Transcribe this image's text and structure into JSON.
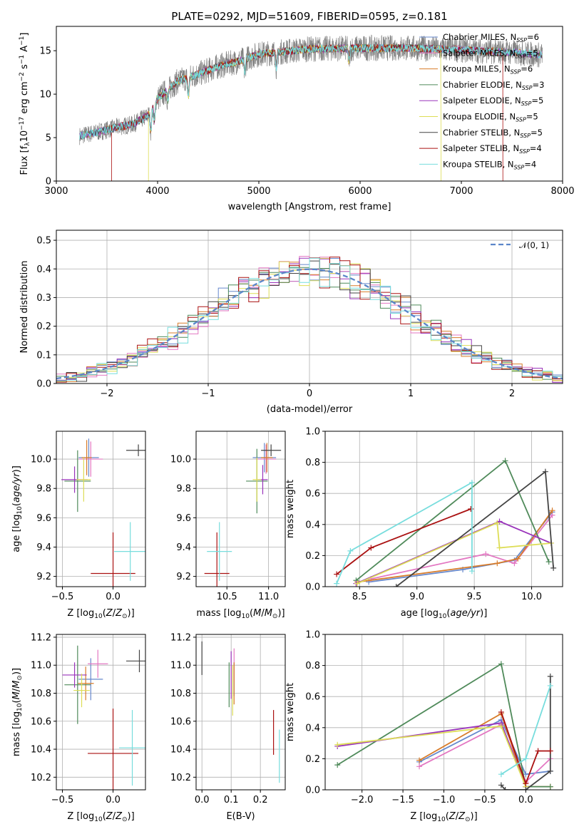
{
  "title": "PLATE=0292, MJD=51609, FIBERID=0595, z=0.181",
  "colors": [
    "#6688cc",
    "#e377c2",
    "#d87c2a",
    "#4f8a5a",
    "#9933bb",
    "#dddd55",
    "#444444",
    "#aa1111",
    "#77dddd"
  ],
  "chart_data": [
    {
      "id": "spectrum",
      "type": "line",
      "xlabel": "wavelength [Angstrom, rest frame]",
      "ylabel": "Flux [f",
      "xlim": [
        3000,
        8000
      ],
      "ylim": [
        0,
        17.8
      ],
      "xticks": [
        3000,
        4000,
        5000,
        6000,
        7000,
        8000
      ],
      "yticks": [
        0,
        5,
        10,
        15
      ],
      "grid": false,
      "legend_position": "top-right",
      "legend": [
        {
          "label": "Chabrier MILES, N",
          "n": "6"
        },
        {
          "label": "Salpeter MILES, N",
          "n": "5"
        },
        {
          "label": "Kroupa MILES, N",
          "n": "6"
        },
        {
          "label": "Chabrier ELODIE, N",
          "n": "3"
        },
        {
          "label": "Salpeter ELODIE, N",
          "n": "5"
        },
        {
          "label": "Kroupa ELODIE, N",
          "n": "5"
        },
        {
          "label": "Chabrier STELIB, N",
          "n": "5"
        },
        {
          "label": "Salpeter STELIB, N",
          "n": "4"
        },
        {
          "label": "Kroupa STELIB, N",
          "n": "4"
        }
      ],
      "continuum_x": [
        3230,
        3400,
        3600,
        3750,
        3900,
        4000,
        4200,
        4400,
        4600,
        4800,
        5000,
        5500,
        6000,
        6500,
        7000,
        7500,
        7800
      ],
      "continuum_y": [
        5.2,
        5.6,
        6.2,
        6.5,
        7.5,
        9.5,
        11.5,
        12.3,
        13.2,
        13.8,
        14.6,
        15.2,
        15.3,
        15.3,
        15.1,
        14.8,
        14.5
      ],
      "model_cutoffs": [
        {
          "series": 7,
          "x_start": 3545,
          "x_end": 7410
        },
        {
          "series": 5,
          "x_start": 3910,
          "x_end": 6800
        }
      ]
    },
    {
      "id": "residuals",
      "type": "histogram",
      "xlabel": "(data-model)/error",
      "ylabel": "Normed distribution",
      "xlim": [
        -2.5,
        2.5
      ],
      "ylim": [
        0,
        0.535
      ],
      "xticks": [
        -2,
        -1,
        0,
        1,
        2
      ],
      "yticks": [
        0,
        0.1,
        0.2,
        0.3,
        0.4,
        0.5
      ],
      "grid": true,
      "bin_width": 0.1,
      "legend": "𝒩(0, 1)",
      "legend_position": "top-right",
      "reference_curve": "normal(0,1)"
    },
    {
      "id": "age-vs-Z",
      "type": "errorbar",
      "xlabel": "Z [log",
      "ylabel": "age  [log",
      "xlim": [
        -0.56,
        0.32
      ],
      "ylim": [
        9.13,
        10.19
      ],
      "xticks": [
        -0.5,
        0.0
      ],
      "yticks": [
        9.2,
        9.4,
        9.6,
        9.8,
        10.0
      ],
      "grid": true,
      "points": [
        {
          "s": 0,
          "x": -0.24,
          "y": 10.01,
          "dx": 0.1,
          "dy": 0.13
        },
        {
          "s": 1,
          "x": -0.22,
          "y": 10.0,
          "dx": 0.12,
          "dy": 0.12
        },
        {
          "s": 2,
          "x": -0.26,
          "y": 10.01,
          "dx": 0.05,
          "dy": 0.12
        },
        {
          "s": 3,
          "x": -0.35,
          "y": 9.85,
          "dx": 0.13,
          "dy": 0.21
        },
        {
          "s": 4,
          "x": -0.38,
          "y": 9.86,
          "dx": 0.13,
          "dy": 0.09
        },
        {
          "s": 5,
          "x": -0.29,
          "y": 9.86,
          "dx": 0.07,
          "dy": 0.15
        },
        {
          "s": 6,
          "x": 0.25,
          "y": 10.06,
          "dx": 0.12,
          "dy": 0.04
        },
        {
          "s": 7,
          "x": 0.0,
          "y": 9.22,
          "dx": 0.22,
          "dy": 0.28
        },
        {
          "s": 8,
          "x": 0.17,
          "y": 9.37,
          "dx": 0.16,
          "dy": 0.2
        }
      ]
    },
    {
      "id": "age-vs-mass",
      "type": "errorbar",
      "xlabel": "mass [log",
      "xlim": [
        10.13,
        11.2
      ],
      "ylim": [
        9.13,
        10.19
      ],
      "xticks": [
        10.5,
        11.0
      ],
      "yticks": [
        9.2,
        9.4,
        9.6,
        9.8,
        10.0
      ],
      "grid": true,
      "points": [
        {
          "s": 0,
          "x": 10.95,
          "y": 10.01,
          "dx": 0.14,
          "dy": 0.1
        },
        {
          "s": 1,
          "x": 10.97,
          "y": 10.0,
          "dx": 0.12,
          "dy": 0.1
        },
        {
          "s": 2,
          "x": 10.98,
          "y": 10.01,
          "dx": 0.07,
          "dy": 0.1
        },
        {
          "s": 3,
          "x": 10.86,
          "y": 9.85,
          "dx": 0.13,
          "dy": 0.22
        },
        {
          "s": 4,
          "x": 10.93,
          "y": 9.86,
          "dx": 0.06,
          "dy": 0.1
        },
        {
          "s": 5,
          "x": 10.86,
          "y": 9.86,
          "dx": 0.05,
          "dy": 0.15
        },
        {
          "s": 6,
          "x": 11.03,
          "y": 10.06,
          "dx": 0.12,
          "dy": 0.04
        },
        {
          "s": 7,
          "x": 10.38,
          "y": 9.22,
          "dx": 0.15,
          "dy": 0.28
        },
        {
          "s": 8,
          "x": 10.41,
          "y": 9.37,
          "dx": 0.15,
          "dy": 0.2
        }
      ]
    },
    {
      "id": "weight-vs-age",
      "type": "line",
      "xlabel": "age  [log",
      "ylabel": "mass weight",
      "xlim": [
        8.2,
        10.27
      ],
      "ylim": [
        0,
        1.0
      ],
      "xticks": [
        8.5,
        9.0,
        9.5,
        10.0
      ],
      "yticks": [
        0,
        0.2,
        0.4,
        0.6,
        0.8,
        1.0
      ],
      "grid": true,
      "series": [
        {
          "s": 0,
          "x": [
            8.58,
            9.4,
            9.85,
            10.18
          ],
          "y": [
            0.03,
            0.11,
            0.17,
            0.48
          ]
        },
        {
          "s": 1,
          "x": [
            8.6,
            9.6,
            9.85,
            10.18
          ],
          "y": [
            0.05,
            0.21,
            0.15,
            0.46
          ]
        },
        {
          "s": 2,
          "x": [
            8.48,
            9.7,
            9.88,
            10.18
          ],
          "y": [
            0.03,
            0.15,
            0.18,
            0.49
          ]
        },
        {
          "s": 3,
          "x": [
            8.47,
            9.77,
            10.15
          ],
          "y": [
            0.04,
            0.81,
            0.16
          ]
        },
        {
          "s": 4,
          "x": [
            8.47,
            9.72,
            10.17
          ],
          "y": [
            0.02,
            0.42,
            0.28
          ]
        },
        {
          "s": 5,
          "x": [
            8.48,
            9.7,
            9.72,
            10.17
          ],
          "y": [
            0.02,
            0.41,
            0.25,
            0.28
          ]
        },
        {
          "s": 6,
          "x": [
            8.82,
            10.12,
            10.19
          ],
          "y": [
            0.0,
            0.74,
            0.12
          ]
        },
        {
          "s": 7,
          "x": [
            8.3,
            8.6,
            9.47
          ],
          "y": [
            0.08,
            0.25,
            0.5
          ]
        },
        {
          "s": 8,
          "x": [
            8.3,
            8.42,
            9.48,
            9.48
          ],
          "y": [
            0.02,
            0.23,
            0.67,
            0.1
          ]
        }
      ]
    },
    {
      "id": "mass-vs-Z",
      "type": "errorbar",
      "xlabel": "Z [log",
      "ylabel": "mass [log",
      "xlim": [
        -0.56,
        0.32
      ],
      "ylim": [
        10.11,
        11.22
      ],
      "xticks": [
        -0.5,
        0.0
      ],
      "yticks": [
        10.2,
        10.4,
        10.6,
        10.8,
        11.0,
        11.2
      ],
      "grid": true,
      "points": [
        {
          "s": 0,
          "x": -0.22,
          "y": 10.9,
          "dx": 0.12,
          "dy": 0.15
        },
        {
          "s": 1,
          "x": -0.15,
          "y": 11.01,
          "dx": 0.1,
          "dy": 0.1
        },
        {
          "s": 2,
          "x": -0.27,
          "y": 10.87,
          "dx": 0.08,
          "dy": 0.12
        },
        {
          "s": 3,
          "x": -0.35,
          "y": 10.86,
          "dx": 0.13,
          "dy": 0.28
        },
        {
          "s": 4,
          "x": -0.38,
          "y": 10.93,
          "dx": 0.12,
          "dy": 0.09
        },
        {
          "s": 5,
          "x": -0.31,
          "y": 10.82,
          "dx": 0.08,
          "dy": 0.12
        },
        {
          "s": 6,
          "x": 0.26,
          "y": 11.03,
          "dx": 0.13,
          "dy": 0.08
        },
        {
          "s": 7,
          "x": 0.0,
          "y": 10.37,
          "dx": 0.25,
          "dy": 0.32
        },
        {
          "s": 8,
          "x": 0.19,
          "y": 10.41,
          "dx": 0.13,
          "dy": 0.27
        }
      ]
    },
    {
      "id": "mass-vs-EBV",
      "type": "errorbar",
      "xlabel": "E(B-V)",
      "xlim": [
        -0.02,
        0.285
      ],
      "ylim": [
        10.11,
        11.22
      ],
      "xticks": [
        0.0,
        0.1,
        0.2
      ],
      "yticks": [
        10.2,
        10.4,
        10.6,
        10.8,
        11.0,
        11.2
      ],
      "grid": true,
      "points": [
        {
          "s": 0,
          "x": 0.11,
          "y": 10.9,
          "dx": 0,
          "dy": 0.12
        },
        {
          "s": 1,
          "x": 0.11,
          "y": 11.0,
          "dx": 0,
          "dy": 0.12
        },
        {
          "s": 2,
          "x": 0.11,
          "y": 10.87,
          "dx": 0,
          "dy": 0.15
        },
        {
          "s": 3,
          "x": 0.093,
          "y": 10.86,
          "dx": 0,
          "dy": 0.16
        },
        {
          "s": 4,
          "x": 0.1,
          "y": 10.93,
          "dx": 0,
          "dy": 0.17
        },
        {
          "s": 5,
          "x": 0.105,
          "y": 10.82,
          "dx": 0,
          "dy": 0.18
        },
        {
          "s": 6,
          "x": 0.0,
          "y": 11.05,
          "dx": 0,
          "dy": 0.12
        },
        {
          "s": 7,
          "x": 0.245,
          "y": 10.52,
          "dx": 0,
          "dy": 0.16
        },
        {
          "s": 8,
          "x": 0.265,
          "y": 10.35,
          "dx": 0,
          "dy": 0.19
        }
      ]
    },
    {
      "id": "weight-vs-Z",
      "type": "line",
      "xlabel": "Z [log",
      "ylabel": "mass weight",
      "xlim": [
        -2.45,
        0.45
      ],
      "ylim": [
        0,
        1.0
      ],
      "xticks": [
        -2.0,
        -1.5,
        -1.0,
        -0.5,
        0.0
      ],
      "yticks": [
        0,
        0.2,
        0.4,
        0.6,
        0.8,
        1.0
      ],
      "grid": true,
      "series": [
        {
          "s": 0,
          "x": [
            -1.3,
            -0.3,
            0.0,
            0.3
          ],
          "y": [
            0.18,
            0.45,
            0.1,
            0.12
          ]
        },
        {
          "s": 1,
          "x": [
            -1.3,
            -0.3,
            0.0,
            0.3
          ],
          "y": [
            0.15,
            0.42,
            0.05,
            0.2
          ]
        },
        {
          "s": 2,
          "x": [
            -1.3,
            -0.3,
            0.0,
            0.3
          ],
          "y": [
            0.19,
            0.49,
            0.02,
            0.02
          ]
        },
        {
          "s": 3,
          "x": [
            -2.3,
            -0.3,
            0.0,
            0.3
          ],
          "y": [
            0.16,
            0.81,
            0.02,
            0.02
          ]
        },
        {
          "s": 4,
          "x": [
            -2.3,
            -0.3,
            0.0
          ],
          "y": [
            0.28,
            0.43,
            0.02
          ]
        },
        {
          "s": 5,
          "x": [
            -2.3,
            -0.3,
            0.0
          ],
          "y": [
            0.29,
            0.41,
            0.02
          ]
        },
        {
          "s": 6,
          "x": [
            -0.3,
            -0.25,
            0.0,
            0.3,
            0.3
          ],
          "y": [
            0.03,
            0.0,
            0.0,
            0.12,
            0.73
          ]
        },
        {
          "s": 7,
          "x": [
            -0.3,
            0.0,
            0.15,
            0.3
          ],
          "y": [
            0.5,
            0.04,
            0.25,
            0.25
          ]
        },
        {
          "s": 8,
          "x": [
            -0.3,
            0.0,
            0.3
          ],
          "y": [
            0.1,
            0.2,
            0.67
          ]
        }
      ]
    }
  ]
}
